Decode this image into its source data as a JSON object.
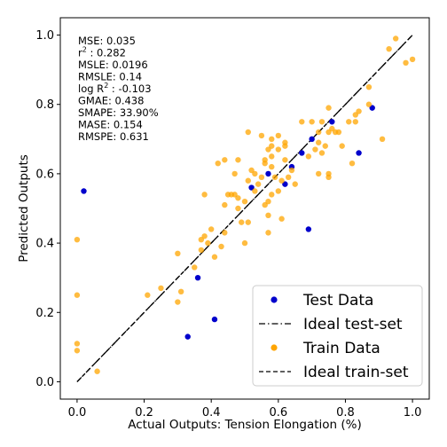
{
  "chart_data": {
    "type": "scatter",
    "xlabel": "Actual Outputs: Tension Elongation (%)",
    "ylabel": "Predicted Outputs",
    "xlim": [
      -0.05,
      1.05
    ],
    "ylim": [
      -0.05,
      1.05
    ],
    "x_ticks": [
      "0.0",
      "0.2",
      "0.4",
      "0.6",
      "0.8",
      "1.0"
    ],
    "y_ticks": [
      "0.0",
      "0.2",
      "0.4",
      "0.6",
      "0.8",
      "1.0"
    ],
    "grid": false,
    "legend_position": "lower-right",
    "metrics": [
      {
        "label": "MSE: 0.035"
      },
      {
        "label": "r",
        "sup": "2",
        "rest": " : 0.282"
      },
      {
        "label": "MSLE: 0.0196"
      },
      {
        "label": "RMSLE: 0.14"
      },
      {
        "label": "log R",
        "sup": "2",
        "rest": " : -0.103"
      },
      {
        "label": "GMAE: 0.438"
      },
      {
        "label": "SMAPE: 33.90%"
      },
      {
        "label": "MASE: 0.154"
      },
      {
        "label": "RMSPE: 0.631"
      }
    ],
    "series": [
      {
        "name": "Test Data",
        "kind": "scatter",
        "color": "#0000cc",
        "points": [
          [
            0.02,
            0.55
          ],
          [
            0.36,
            0.3
          ],
          [
            0.41,
            0.18
          ],
          [
            0.33,
            0.13
          ],
          [
            0.52,
            0.56
          ],
          [
            0.57,
            0.6
          ],
          [
            0.62,
            0.57
          ],
          [
            0.64,
            0.62
          ],
          [
            0.67,
            0.66
          ],
          [
            0.69,
            0.44
          ],
          [
            0.7,
            0.7
          ],
          [
            0.76,
            0.75
          ],
          [
            0.84,
            0.66
          ],
          [
            0.88,
            0.79
          ]
        ]
      },
      {
        "name": "Ideal test-set",
        "kind": "line",
        "color": "#000000",
        "dash": "dashdot",
        "points": [
          [
            0,
            0
          ],
          [
            1,
            1
          ]
        ]
      },
      {
        "name": "Train Data",
        "kind": "scatter",
        "color": "#ffa500",
        "points": [
          [
            0.0,
            0.41
          ],
          [
            0.0,
            0.25
          ],
          [
            0.0,
            0.11
          ],
          [
            0.0,
            0.09
          ],
          [
            0.06,
            0.03
          ],
          [
            0.21,
            0.25
          ],
          [
            0.25,
            0.27
          ],
          [
            0.3,
            0.23
          ],
          [
            0.3,
            0.37
          ],
          [
            0.31,
            0.26
          ],
          [
            0.35,
            0.33
          ],
          [
            0.37,
            0.38
          ],
          [
            0.37,
            0.41
          ],
          [
            0.38,
            0.42
          ],
          [
            0.38,
            0.54
          ],
          [
            0.39,
            0.4
          ],
          [
            0.4,
            0.44
          ],
          [
            0.41,
            0.36
          ],
          [
            0.42,
            0.63
          ],
          [
            0.43,
            0.39
          ],
          [
            0.44,
            0.51
          ],
          [
            0.44,
            0.43
          ],
          [
            0.44,
            0.64
          ],
          [
            0.45,
            0.54
          ],
          [
            0.46,
            0.54
          ],
          [
            0.47,
            0.6
          ],
          [
            0.47,
            0.54
          ],
          [
            0.48,
            0.64
          ],
          [
            0.48,
            0.53
          ],
          [
            0.48,
            0.5
          ],
          [
            0.49,
            0.46
          ],
          [
            0.5,
            0.52
          ],
          [
            0.5,
            0.4
          ],
          [
            0.51,
            0.46
          ],
          [
            0.51,
            0.58
          ],
          [
            0.51,
            0.72
          ],
          [
            0.52,
            0.61
          ],
          [
            0.53,
            0.55
          ],
          [
            0.53,
            0.6
          ],
          [
            0.54,
            0.57
          ],
          [
            0.55,
            0.71
          ],
          [
            0.55,
            0.59
          ],
          [
            0.56,
            0.63
          ],
          [
            0.56,
            0.51
          ],
          [
            0.56,
            0.64
          ],
          [
            0.57,
            0.48
          ],
          [
            0.57,
            0.43
          ],
          [
            0.57,
            0.52
          ],
          [
            0.57,
            0.67
          ],
          [
            0.58,
            0.7
          ],
          [
            0.58,
            0.65
          ],
          [
            0.58,
            0.68
          ],
          [
            0.58,
            0.62
          ],
          [
            0.58,
            0.54
          ],
          [
            0.59,
            0.59
          ],
          [
            0.6,
            0.71
          ],
          [
            0.6,
            0.67
          ],
          [
            0.6,
            0.55
          ],
          [
            0.61,
            0.47
          ],
          [
            0.61,
            0.58
          ],
          [
            0.62,
            0.68
          ],
          [
            0.62,
            0.64
          ],
          [
            0.62,
            0.69
          ],
          [
            0.63,
            0.59
          ],
          [
            0.64,
            0.61
          ],
          [
            0.65,
            0.57
          ],
          [
            0.67,
            0.75
          ],
          [
            0.69,
            0.65
          ],
          [
            0.7,
            0.75
          ],
          [
            0.71,
            0.67
          ],
          [
            0.72,
            0.6
          ],
          [
            0.72,
            0.72
          ],
          [
            0.72,
            0.69
          ],
          [
            0.73,
            0.75
          ],
          [
            0.73,
            0.66
          ],
          [
            0.74,
            0.68
          ],
          [
            0.75,
            0.72
          ],
          [
            0.75,
            0.6
          ],
          [
            0.75,
            0.59
          ],
          [
            0.75,
            0.79
          ],
          [
            0.76,
            0.73
          ],
          [
            0.77,
            0.72
          ],
          [
            0.78,
            0.72
          ],
          [
            0.79,
            0.68
          ],
          [
            0.81,
            0.75
          ],
          [
            0.82,
            0.63
          ],
          [
            0.83,
            0.77
          ],
          [
            0.83,
            0.75
          ],
          [
            0.84,
            0.78
          ],
          [
            0.87,
            0.85
          ],
          [
            0.87,
            0.8
          ],
          [
            0.91,
            0.7
          ],
          [
            0.93,
            0.96
          ],
          [
            0.95,
            0.99
          ],
          [
            0.98,
            0.92
          ],
          [
            1.0,
            0.93
          ]
        ]
      },
      {
        "name": "Ideal train-set",
        "kind": "line",
        "color": "#000000",
        "dash": "dashed",
        "points": [
          [
            0,
            0
          ],
          [
            1,
            1
          ]
        ]
      }
    ]
  }
}
